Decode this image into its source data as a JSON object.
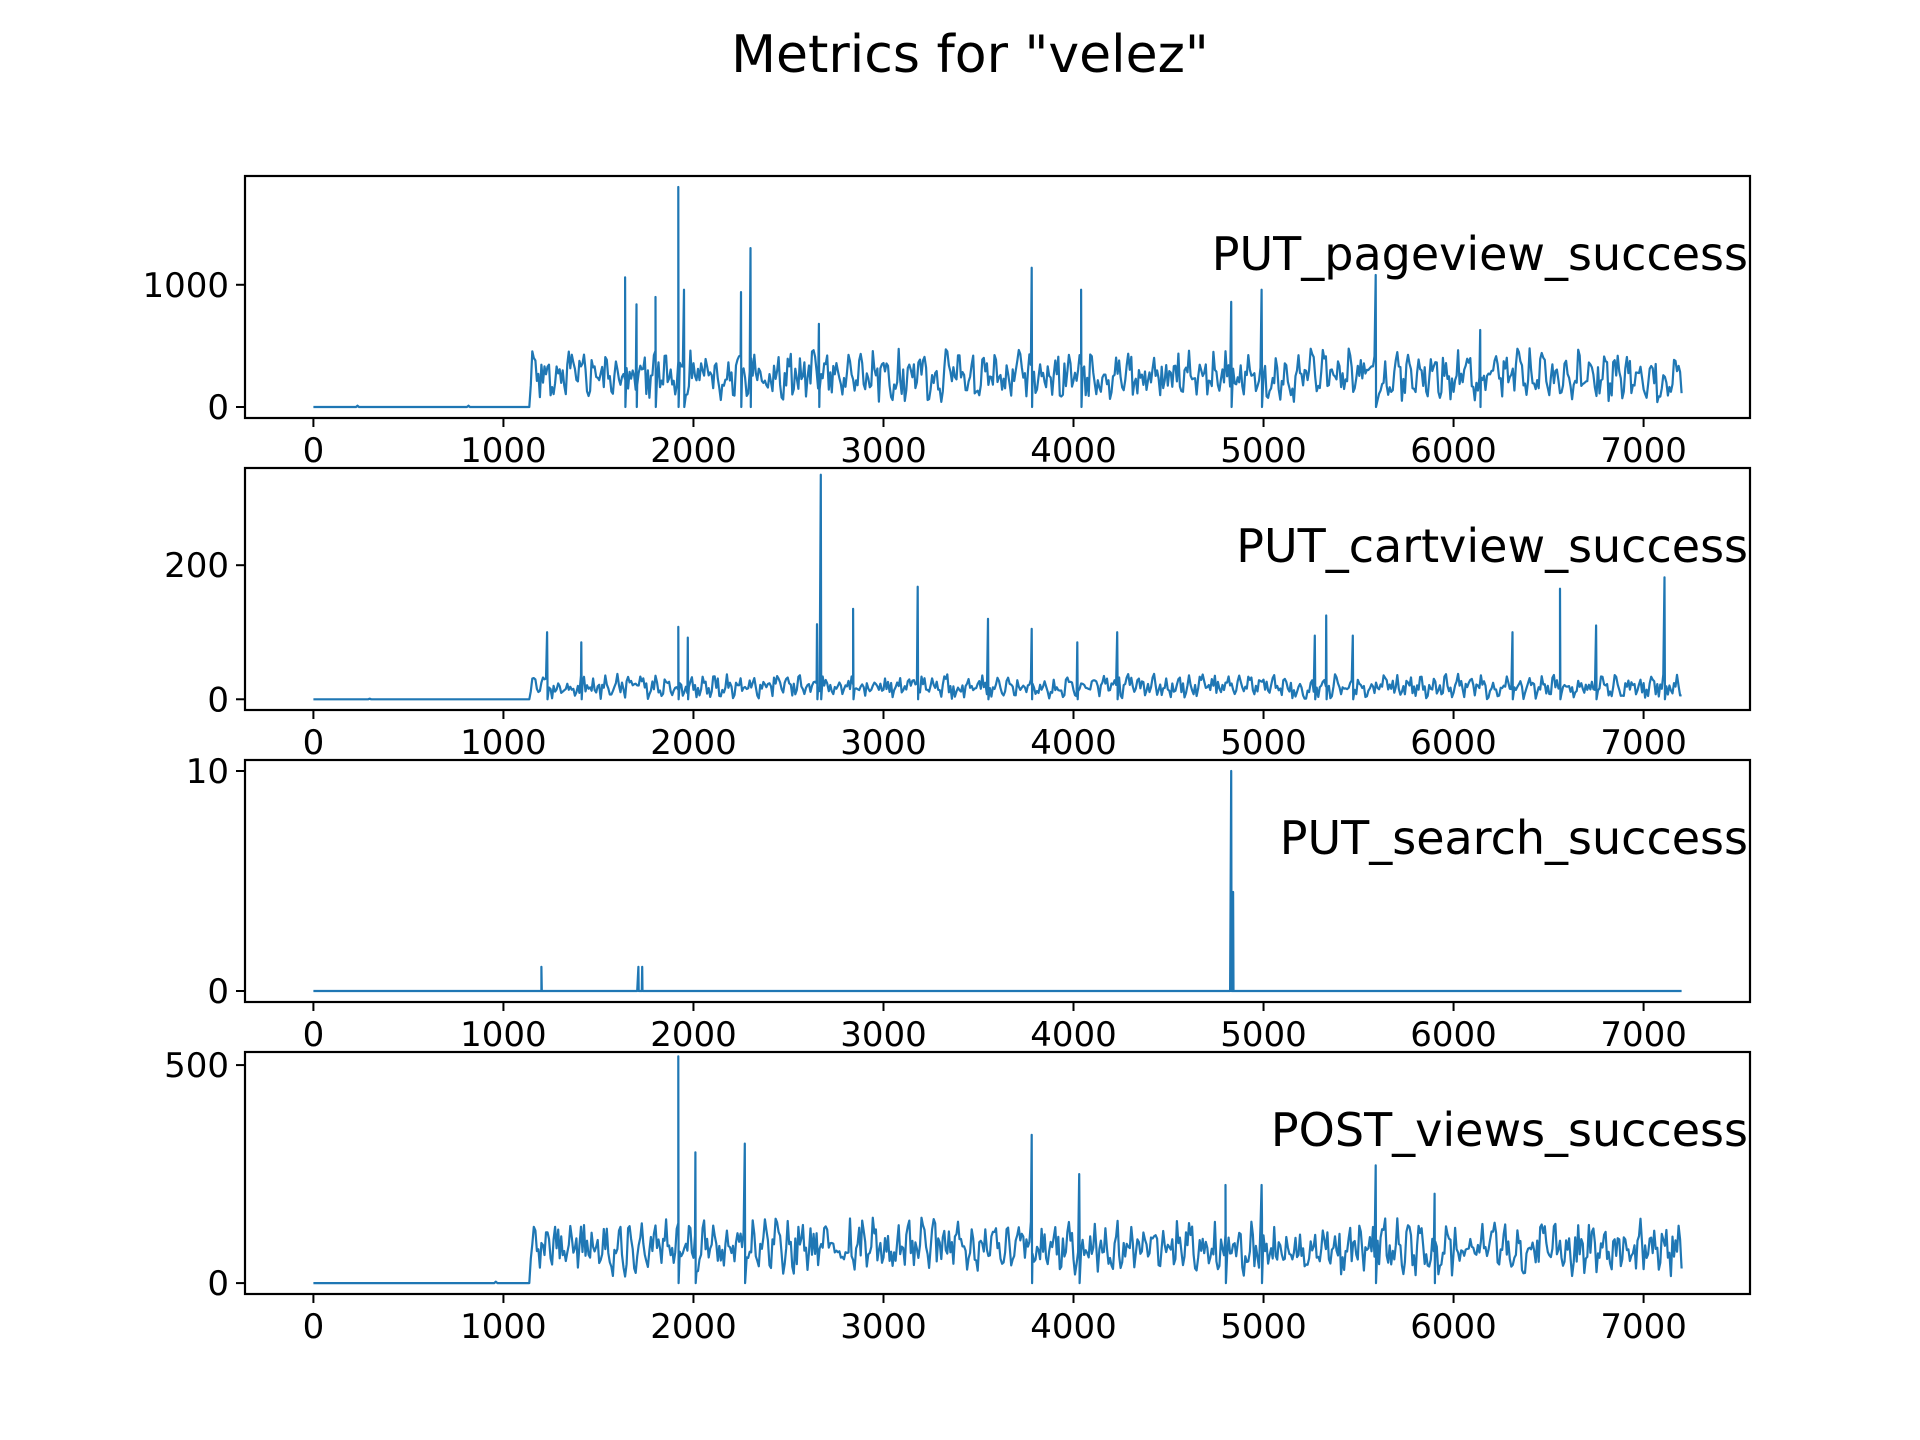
{
  "figure": {
    "title": "Metrics for \"velez\""
  },
  "chart_data": [
    {
      "type": "line",
      "title": "",
      "series_label": "PUT_pageview_success",
      "xlabel": "",
      "ylabel": "",
      "color": "#1f77b4",
      "xlim": [
        -360,
        7560
      ],
      "ylim": [
        -90,
        1890
      ],
      "xticks": [
        0,
        1000,
        2000,
        3000,
        4000,
        5000,
        6000,
        7000
      ],
      "xtick_labels": [
        "0",
        "1000",
        "2000",
        "3000",
        "4000",
        "5000",
        "6000",
        "7000"
      ],
      "yticks": [
        0,
        1000
      ],
      "ytick_labels": [
        "0",
        "1000"
      ],
      "x_range": [
        0,
        7200
      ],
      "idle_until": 1140,
      "typical_range": [
        40,
        560
      ],
      "spikes": [
        {
          "x": 1640,
          "y": 1060
        },
        {
          "x": 1700,
          "y": 840
        },
        {
          "x": 1800,
          "y": 900
        },
        {
          "x": 1920,
          "y": 1800
        },
        {
          "x": 1950,
          "y": 960
        },
        {
          "x": 2250,
          "y": 940
        },
        {
          "x": 2300,
          "y": 1300
        },
        {
          "x": 2660,
          "y": 680
        },
        {
          "x": 3780,
          "y": 1140
        },
        {
          "x": 4040,
          "y": 960
        },
        {
          "x": 4830,
          "y": 860
        },
        {
          "x": 4990,
          "y": 960
        },
        {
          "x": 5590,
          "y": 1080
        },
        {
          "x": 6140,
          "y": 630
        }
      ],
      "grid": false,
      "legend": "none"
    },
    {
      "type": "line",
      "title": "",
      "series_label": "PUT_cartview_success",
      "xlabel": "",
      "ylabel": "",
      "color": "#1f77b4",
      "xlim": [
        -360,
        7560
      ],
      "ylim": [
        -16,
        345
      ],
      "xticks": [
        0,
        1000,
        2000,
        3000,
        4000,
        5000,
        6000,
        7000
      ],
      "xtick_labels": [
        "0",
        "1000",
        "2000",
        "3000",
        "4000",
        "5000",
        "6000",
        "7000"
      ],
      "yticks": [
        0,
        200
      ],
      "ytick_labels": [
        "0",
        "200"
      ],
      "x_range": [
        0,
        7200
      ],
      "idle_until": 1140,
      "typical_range": [
        0,
        45
      ],
      "spikes": [
        {
          "x": 1230,
          "y": 100
        },
        {
          "x": 1410,
          "y": 85
        },
        {
          "x": 1920,
          "y": 108
        },
        {
          "x": 1970,
          "y": 92
        },
        {
          "x": 2650,
          "y": 112
        },
        {
          "x": 2670,
          "y": 335
        },
        {
          "x": 2840,
          "y": 135
        },
        {
          "x": 3180,
          "y": 168
        },
        {
          "x": 3550,
          "y": 120
        },
        {
          "x": 3780,
          "y": 105
        },
        {
          "x": 4020,
          "y": 85
        },
        {
          "x": 4230,
          "y": 100
        },
        {
          "x": 5270,
          "y": 95
        },
        {
          "x": 5330,
          "y": 125
        },
        {
          "x": 5470,
          "y": 95
        },
        {
          "x": 6310,
          "y": 100
        },
        {
          "x": 6560,
          "y": 165
        },
        {
          "x": 6750,
          "y": 110
        },
        {
          "x": 7110,
          "y": 182
        }
      ],
      "grid": false,
      "legend": "none"
    },
    {
      "type": "line",
      "title": "",
      "series_label": "PUT_search_success",
      "xlabel": "",
      "ylabel": "",
      "color": "#1f77b4",
      "xlim": [
        -360,
        7560
      ],
      "ylim": [
        -0.5,
        10.5
      ],
      "xticks": [
        0,
        1000,
        2000,
        3000,
        4000,
        5000,
        6000,
        7000
      ],
      "xtick_labels": [
        "0",
        "1000",
        "2000",
        "3000",
        "4000",
        "5000",
        "6000",
        "7000"
      ],
      "yticks": [
        0,
        10
      ],
      "ytick_labels": [
        "0",
        "10"
      ],
      "x_range": [
        0,
        7200
      ],
      "idle_until": 0,
      "typical_range": [
        0,
        0
      ],
      "spikes": [
        {
          "x": 1200,
          "y": 1.1
        },
        {
          "x": 1710,
          "y": 1.1
        },
        {
          "x": 1730,
          "y": 1.1
        },
        {
          "x": 4830,
          "y": 10.0
        },
        {
          "x": 4840,
          "y": 4.5
        }
      ],
      "grid": false,
      "legend": "none"
    },
    {
      "type": "line",
      "title": "",
      "series_label": "POST_views_success",
      "xlabel": "",
      "ylabel": "",
      "color": "#1f77b4",
      "xlim": [
        -360,
        7560
      ],
      "ylim": [
        -25,
        530
      ],
      "xticks": [
        0,
        1000,
        2000,
        3000,
        4000,
        5000,
        6000,
        7000
      ],
      "xtick_labels": [
        "0",
        "1000",
        "2000",
        "3000",
        "4000",
        "5000",
        "6000",
        "7000"
      ],
      "yticks": [
        0,
        500
      ],
      "ytick_labels": [
        "0",
        "500"
      ],
      "x_range": [
        0,
        7200
      ],
      "idle_until": 1140,
      "typical_range": [
        15,
        175
      ],
      "spikes": [
        {
          "x": 1920,
          "y": 520
        },
        {
          "x": 2270,
          "y": 320
        },
        {
          "x": 2010,
          "y": 300
        },
        {
          "x": 3780,
          "y": 340
        },
        {
          "x": 4030,
          "y": 250
        },
        {
          "x": 4800,
          "y": 225
        },
        {
          "x": 4990,
          "y": 225
        },
        {
          "x": 5590,
          "y": 270
        },
        {
          "x": 5900,
          "y": 205
        }
      ],
      "grid": false,
      "legend": "none"
    }
  ]
}
